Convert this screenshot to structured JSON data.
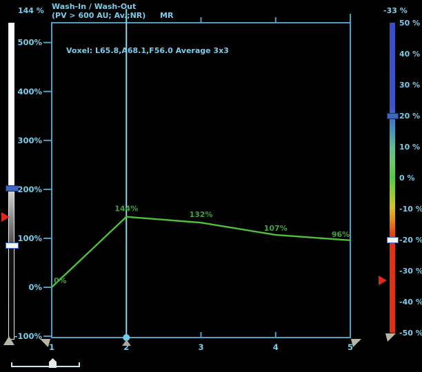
{
  "header": {
    "title_line1": "Wash-In / Wash-Out",
    "title_line2": "(PV > 600 AU; Av.;NR)",
    "modality": "MR"
  },
  "annotation": "Voxel: L65.8,A68.1,F56.0 Average 3x3",
  "left_slider": {
    "value_label": "144 %",
    "marker_value": 144,
    "handle_values": [
      203,
      86
    ],
    "marker_icon": "red-arrow-icon",
    "bottom_icon": "gray-up-triangle-icon"
  },
  "right_colorbar": {
    "value_label": "-33 %",
    "marker_value": -33,
    "handle_values": [
      20,
      -20
    ],
    "tick_values": [
      50,
      40,
      30,
      20,
      10,
      0,
      -10,
      -20,
      -30,
      -40,
      -50
    ],
    "tick_labels": [
      "50 %",
      "40 %",
      "30 %",
      "20 %",
      "10 %",
      "0 %",
      "-10 %",
      "-20 %",
      "-30 %",
      "-40 %",
      "-50 %"
    ],
    "marker_icon": "red-arrow-icon",
    "bottom_icon": "gray-flag-icon"
  },
  "chart_data": {
    "type": "line",
    "title": "Wash-In / Wash-Out (PV > 600 AU; Av.;NR)",
    "x": [
      1,
      2,
      3,
      4,
      5
    ],
    "values": [
      0,
      144,
      132,
      107,
      96
    ],
    "point_labels": [
      "0%",
      "144%",
      "132%",
      "107%",
      "96%"
    ],
    "xtick_labels": [
      "1",
      "2",
      "3",
      "4",
      "5"
    ],
    "ytick_values": [
      500,
      400,
      300,
      200,
      100,
      0,
      -100
    ],
    "ytick_labels": [
      "500%",
      "400%",
      "300%",
      "200%",
      "100%",
      "0%",
      "-100%"
    ],
    "ylim": [
      -103,
      540
    ],
    "xlabel": "",
    "ylabel": "",
    "grid": false,
    "legend": "none",
    "current_timepoint": 2
  },
  "colors": {
    "cyan_text": "#79cde9",
    "axis": "#4fa0c8",
    "time_line": "#8ad6ee",
    "curve": "#4fc13c",
    "point_label": "#44a23e",
    "marker_red": "#e02814",
    "dot_blue": "#74cbe8"
  }
}
